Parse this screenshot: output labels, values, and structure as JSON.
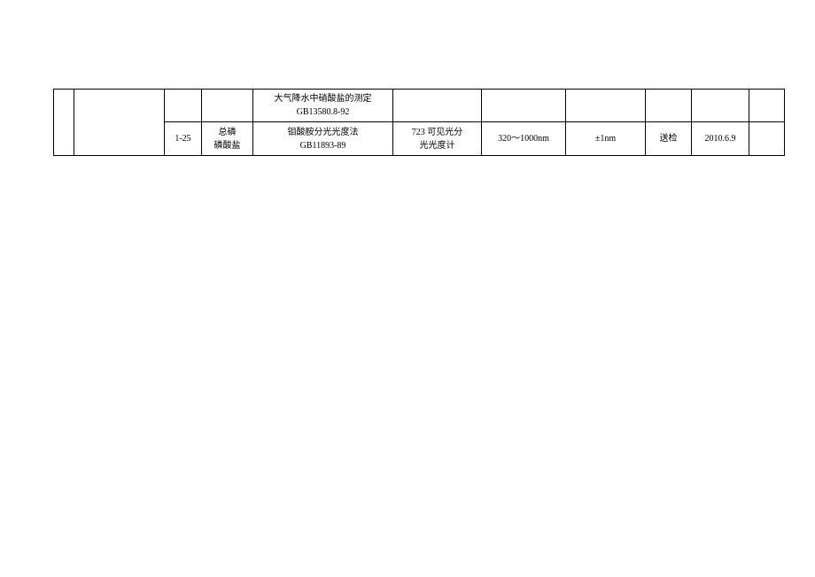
{
  "table": {
    "columns": [
      {
        "width": 23
      },
      {
        "width": 102
      },
      {
        "width": 42
      },
      {
        "width": 58
      },
      {
        "width": 158
      },
      {
        "width": 100
      },
      {
        "width": 95
      },
      {
        "width": 90
      },
      {
        "width": 52
      },
      {
        "width": 65
      },
      {
        "width": 40
      }
    ],
    "rows": [
      {
        "cells": {
          "col4_line1": "大气降水中硝酸盐的测定",
          "col4_line2": "GB13580.8-92"
        }
      },
      {
        "cells": {
          "col2": "1-25",
          "col3_line1": "总磷",
          "col3_line2": "磷酸盐",
          "col4_line1": "钼酸胺分光光度法",
          "col4_line2": "GB11893-89",
          "col5_line1": "723 可见光分",
          "col5_line2": "光光度计",
          "col6": "320～1000nm",
          "col7": "±1nm",
          "col8": "送检",
          "col9": "2010.6.9"
        }
      }
    ],
    "styling": {
      "border_color": "#000000",
      "background_color": "#ffffff",
      "text_color": "#000000",
      "font_family": "SimSun",
      "font_size": 10
    }
  }
}
